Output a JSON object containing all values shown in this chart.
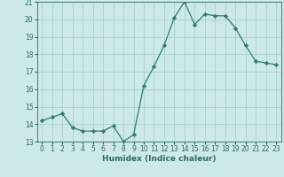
{
  "x": [
    0,
    1,
    2,
    3,
    4,
    5,
    6,
    7,
    8,
    9,
    10,
    11,
    12,
    13,
    14,
    15,
    16,
    17,
    18,
    19,
    20,
    21,
    22,
    23
  ],
  "y": [
    14.2,
    14.4,
    14.6,
    13.8,
    13.6,
    13.6,
    13.6,
    13.9,
    13.0,
    13.4,
    16.2,
    17.3,
    18.5,
    20.1,
    21.0,
    19.7,
    20.3,
    20.2,
    20.2,
    19.5,
    18.5,
    17.6,
    17.5,
    17.4
  ],
  "line_color": "#2e7d6e",
  "marker": "D",
  "marker_size": 2.2,
  "bg_color": "#cce8e8",
  "grid_color": "#aad0d0",
  "xlabel": "Humidex (Indice chaleur)",
  "ylim": [
    13,
    21
  ],
  "xlim_min": -0.5,
  "xlim_max": 23.5,
  "yticks": [
    13,
    14,
    15,
    16,
    17,
    18,
    19,
    20,
    21
  ],
  "xticks": [
    0,
    1,
    2,
    3,
    4,
    5,
    6,
    7,
    8,
    9,
    10,
    11,
    12,
    13,
    14,
    15,
    16,
    17,
    18,
    19,
    20,
    21,
    22,
    23
  ],
  "tick_fontsize": 5.5,
  "xlabel_fontsize": 6.5,
  "tick_color": "#2e6b60",
  "linewidth": 0.9
}
